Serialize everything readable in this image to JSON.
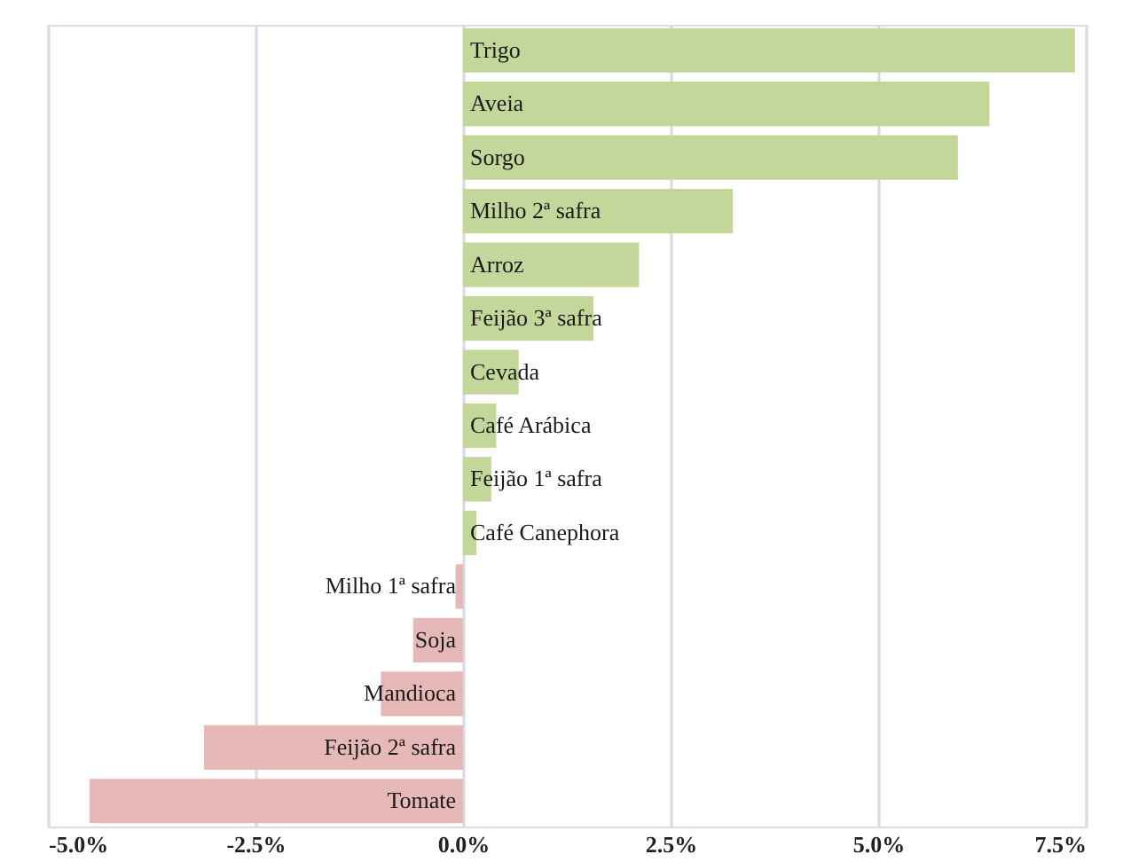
{
  "chart_data": {
    "type": "bar",
    "orientation": "horizontal",
    "categories": [
      "Trigo",
      "Aveia",
      "Sorgo",
      "Milho 2ª safra",
      "Arroz",
      "Feijão 3ª safra",
      "Cevada",
      "Café Arábica",
      "Feijão 1ª safra",
      "Café Canephora",
      "Milho 1ª safra",
      "Soja",
      "Mandioca",
      "Feijão 2ª safra",
      "Tomate"
    ],
    "values": [
      7.37,
      6.34,
      5.96,
      3.25,
      2.12,
      1.57,
      0.67,
      0.4,
      0.34,
      0.16,
      -0.09,
      -0.6,
      -0.99,
      -3.12,
      -4.5
    ],
    "colors": [
      "#c4d79b",
      "#c4d79b",
      "#c4d79b",
      "#c4d79b",
      "#c4d79b",
      "#c4d79b",
      "#c4d79b",
      "#c4d79b",
      "#c4d79b",
      "#c4d79b",
      "#e6b9b8",
      "#e6b9b8",
      "#e6b9b8",
      "#e6b9b8",
      "#e6b9b8"
    ],
    "xlim": [
      -5,
      7.5
    ],
    "xticks": [
      {
        "value": -5,
        "label": "-5.0%"
      },
      {
        "value": -2.5,
        "label": "-2.5%"
      },
      {
        "value": 0,
        "label": "0.0%"
      },
      {
        "value": 2.5,
        "label": "2.5%"
      },
      {
        "value": 5,
        "label": "5.0%"
      },
      {
        "value": 7.5,
        "label": "7.5%"
      }
    ],
    "grid": "x"
  }
}
